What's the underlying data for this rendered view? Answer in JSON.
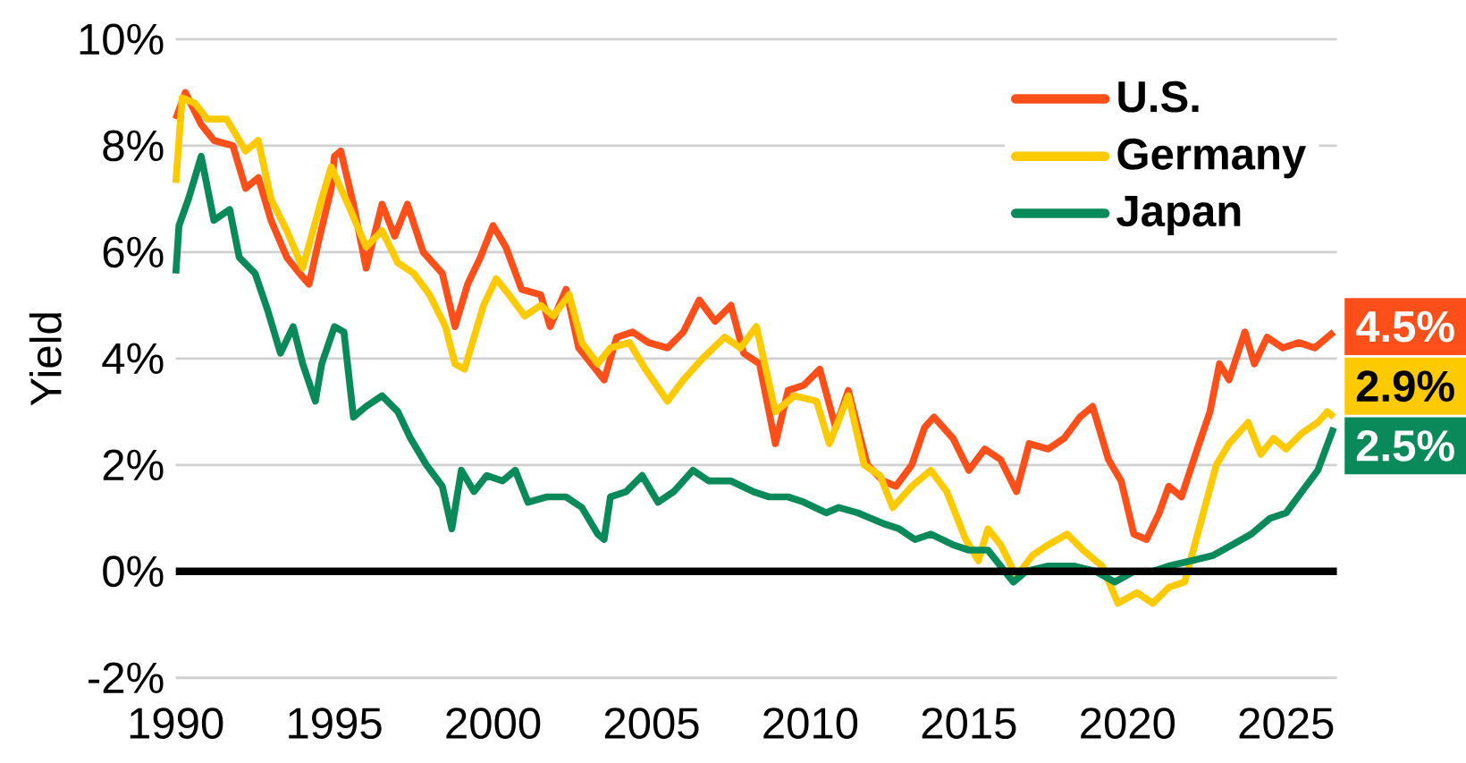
{
  "chart_data": {
    "type": "line",
    "ylabel": "Yield",
    "xlim": [
      1990,
      2026.6
    ],
    "xticks": [
      1990,
      1995,
      2000,
      2005,
      2010,
      2015,
      2020,
      2025
    ],
    "ylim": [
      -2,
      10
    ],
    "yticks": [
      {
        "value": -2,
        "label": "-2%"
      },
      {
        "value": 0,
        "label": "0%"
      },
      {
        "value": 2,
        "label": "2%"
      },
      {
        "value": 4,
        "label": "4%"
      },
      {
        "value": 6,
        "label": "6%"
      },
      {
        "value": 8,
        "label": "8%"
      },
      {
        "value": 10,
        "label": "10%"
      }
    ],
    "grid": "y",
    "legend": "top right",
    "ref_lines": [
      {
        "axis": "y",
        "value": 0,
        "color": "#000000"
      }
    ],
    "series": [
      {
        "name": "U.S.",
        "color": "#fc4f1a",
        "x": [
          1990.0,
          1990.3,
          1990.8,
          1991.2,
          1991.8,
          1992.2,
          1992.6,
          1993.0,
          1993.5,
          1993.9,
          1994.2,
          1994.5,
          1994.9,
          1995.0,
          1995.2,
          1995.6,
          1996.0,
          1996.5,
          1996.9,
          1997.3,
          1997.8,
          1998.4,
          1998.8,
          1999.2,
          1999.6,
          2000.0,
          2000.4,
          2000.9,
          2001.5,
          2001.8,
          2002.3,
          2002.7,
          2003.1,
          2003.5,
          2003.9,
          2004.4,
          2004.9,
          2005.5,
          2006.0,
          2006.5,
          2007.0,
          2007.5,
          2007.9,
          2008.4,
          2008.9,
          2009.3,
          2009.8,
          2010.3,
          2010.8,
          2011.2,
          2011.8,
          2012.3,
          2012.7,
          2013.2,
          2013.6,
          2013.9,
          2014.5,
          2015.0,
          2015.5,
          2016.0,
          2016.5,
          2016.9,
          2017.5,
          2018.0,
          2018.5,
          2018.9,
          2019.4,
          2019.8,
          2020.2,
          2020.6,
          2021.0,
          2021.3,
          2021.7,
          2022.2,
          2022.6,
          2022.9,
          2023.2,
          2023.7,
          2024.0,
          2024.4,
          2024.9,
          2025.4,
          2025.9,
          2026.5
        ],
        "values": [
          8.5,
          9.0,
          8.4,
          8.1,
          8.0,
          7.2,
          7.4,
          6.6,
          5.9,
          5.6,
          5.4,
          6.2,
          7.2,
          7.8,
          7.9,
          6.9,
          5.7,
          6.9,
          6.3,
          6.9,
          6.0,
          5.6,
          4.6,
          5.4,
          5.9,
          6.5,
          6.1,
          5.3,
          5.2,
          4.6,
          5.3,
          4.2,
          3.9,
          3.6,
          4.4,
          4.5,
          4.3,
          4.2,
          4.5,
          5.1,
          4.7,
          5.0,
          4.1,
          3.9,
          2.4,
          3.4,
          3.5,
          3.8,
          2.7,
          3.4,
          2.0,
          1.7,
          1.6,
          2.0,
          2.7,
          2.9,
          2.5,
          1.9,
          2.3,
          2.1,
          1.5,
          2.4,
          2.3,
          2.5,
          2.9,
          3.1,
          2.1,
          1.7,
          0.7,
          0.6,
          1.1,
          1.6,
          1.4,
          2.3,
          3.0,
          3.9,
          3.6,
          4.5,
          3.9,
          4.4,
          4.2,
          4.3,
          4.2,
          4.5
        ]
      },
      {
        "name": "Germany",
        "color": "#fdca00",
        "x": [
          1990.0,
          1990.2,
          1990.6,
          1991.0,
          1991.6,
          1992.2,
          1992.6,
          1993.0,
          1993.5,
          1994.0,
          1994.6,
          1994.9,
          1995.5,
          1996.0,
          1996.5,
          1997.0,
          1997.5,
          1998.0,
          1998.5,
          1998.8,
          1999.1,
          1999.7,
          2000.1,
          2000.5,
          2001.0,
          2001.5,
          2001.9,
          2002.4,
          2002.8,
          2003.3,
          2003.7,
          2004.3,
          2004.8,
          2005.5,
          2006.0,
          2006.6,
          2007.3,
          2007.8,
          2008.3,
          2008.9,
          2009.5,
          2010.2,
          2010.6,
          2011.2,
          2011.7,
          2012.2,
          2012.6,
          2013.2,
          2013.8,
          2014.3,
          2014.9,
          2015.3,
          2015.6,
          2016.0,
          2016.5,
          2017.0,
          2017.5,
          2018.1,
          2018.6,
          2019.2,
          2019.7,
          2020.3,
          2020.8,
          2021.3,
          2021.8,
          2022.3,
          2022.8,
          2023.2,
          2023.8,
          2024.2,
          2024.6,
          2025.0,
          2025.5,
          2026.0,
          2026.3,
          2026.5
        ],
        "values": [
          7.3,
          8.9,
          8.8,
          8.5,
          8.5,
          7.9,
          8.1,
          7.0,
          6.4,
          5.7,
          7.0,
          7.6,
          6.8,
          6.1,
          6.4,
          5.8,
          5.6,
          5.2,
          4.6,
          3.9,
          3.8,
          5.0,
          5.5,
          5.2,
          4.8,
          5.0,
          4.8,
          5.2,
          4.3,
          3.9,
          4.2,
          4.3,
          3.8,
          3.2,
          3.6,
          4.0,
          4.4,
          4.2,
          4.6,
          3.0,
          3.3,
          3.2,
          2.4,
          3.3,
          2.0,
          1.8,
          1.2,
          1.6,
          1.9,
          1.5,
          0.6,
          0.2,
          0.8,
          0.5,
          -0.1,
          0.3,
          0.5,
          0.7,
          0.4,
          0.1,
          -0.6,
          -0.4,
          -0.6,
          -0.3,
          -0.2,
          0.9,
          2.0,
          2.4,
          2.8,
          2.2,
          2.5,
          2.3,
          2.6,
          2.8,
          3.0,
          2.9
        ]
      },
      {
        "name": "Japan",
        "color": "#0a8a5a",
        "x": [
          1990.0,
          1990.1,
          1990.4,
          1990.8,
          1991.2,
          1991.7,
          1992.0,
          1992.5,
          1992.9,
          1993.3,
          1993.7,
          1994.0,
          1994.4,
          1994.6,
          1995.0,
          1995.3,
          1995.6,
          1996.0,
          1996.5,
          1997.0,
          1997.4,
          1997.9,
          1998.4,
          1998.7,
          1999.0,
          1999.4,
          1999.8,
          2000.3,
          2000.7,
          2001.1,
          2001.7,
          2002.3,
          2002.8,
          2003.3,
          2003.5,
          2003.7,
          2004.2,
          2004.7,
          2005.2,
          2005.7,
          2006.3,
          2006.8,
          2007.5,
          2008.2,
          2008.7,
          2009.3,
          2009.8,
          2010.5,
          2010.9,
          2011.5,
          2012.3,
          2012.8,
          2013.3,
          2013.8,
          2014.5,
          2015.0,
          2015.6,
          2016.0,
          2016.4,
          2016.8,
          2017.5,
          2018.3,
          2019.0,
          2019.6,
          2020.2,
          2020.8,
          2021.3,
          2022.0,
          2022.7,
          2023.3,
          2023.9,
          2024.5,
          2025.0,
          2025.5,
          2026.0,
          2026.5
        ],
        "values": [
          5.6,
          6.5,
          7.0,
          7.8,
          6.6,
          6.8,
          5.9,
          5.6,
          4.9,
          4.1,
          4.6,
          3.9,
          3.2,
          3.9,
          4.6,
          4.5,
          2.9,
          3.1,
          3.3,
          3.0,
          2.5,
          2.0,
          1.6,
          0.8,
          1.9,
          1.5,
          1.8,
          1.7,
          1.9,
          1.3,
          1.4,
          1.4,
          1.2,
          0.7,
          0.6,
          1.4,
          1.5,
          1.8,
          1.3,
          1.5,
          1.9,
          1.7,
          1.7,
          1.5,
          1.4,
          1.4,
          1.3,
          1.1,
          1.2,
          1.1,
          0.9,
          0.8,
          0.6,
          0.7,
          0.5,
          0.4,
          0.4,
          0.1,
          -0.2,
          0.0,
          0.1,
          0.1,
          0.0,
          -0.2,
          0.0,
          0.0,
          0.1,
          0.2,
          0.3,
          0.5,
          0.7,
          1.0,
          1.1,
          1.5,
          1.9,
          2.7
        ]
      }
    ],
    "annotations": [
      "4.5%",
      "2.9%",
      "2.5%"
    ]
  }
}
